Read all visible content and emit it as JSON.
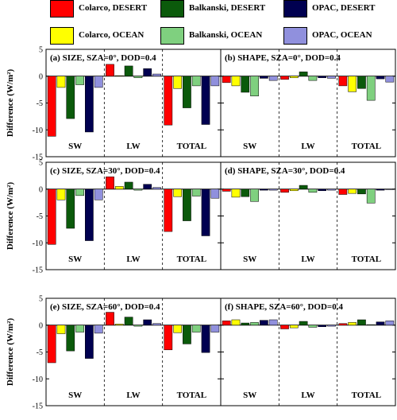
{
  "legend": {
    "items": [
      {
        "label": "Colarco, DESERT",
        "color": "#ff0000"
      },
      {
        "label": "Balkanski, DESERT",
        "color": "#0b5a0b"
      },
      {
        "label": "OPAC, DESERT",
        "color": "#000050"
      },
      {
        "label": "Colarco, OCEAN",
        "color": "#ffff00"
      },
      {
        "label": "Balkanski, OCEAN",
        "color": "#7fd07f"
      },
      {
        "label": "OPAC, OCEAN",
        "color": "#9090dd"
      }
    ]
  },
  "y_axis_label": "Difference (W/m²)",
  "chart_data": [
    {
      "type": "bar",
      "title": "(a) SIZE, SZA=0°, DOD=0.4",
      "categories": [
        "SW",
        "LW",
        "TOTAL"
      ],
      "ylim": [
        -15,
        5
      ],
      "yticks": [
        5,
        0,
        -5,
        -10,
        -15
      ],
      "series": [
        {
          "name": "Colarco, DESERT",
          "values": [
            -11.2,
            2.2,
            -9.1
          ]
        },
        {
          "name": "Colarco, OCEAN",
          "values": [
            -2.1,
            0.1,
            -2.3
          ]
        },
        {
          "name": "Balkanski, DESERT",
          "values": [
            -7.9,
            1.9,
            -5.9
          ]
        },
        {
          "name": "Balkanski, OCEAN",
          "values": [
            -1.6,
            -0.3,
            -1.8
          ]
        },
        {
          "name": "OPAC, DESERT",
          "values": [
            -10.4,
            1.4,
            -9.0
          ]
        },
        {
          "name": "OPAC, OCEAN",
          "values": [
            -2.1,
            0.4,
            -1.8
          ]
        }
      ]
    },
    {
      "type": "bar",
      "title": "(b) SHAPE, SZA=0°, DOD=0.4",
      "categories": [
        "SW",
        "LW",
        "TOTAL"
      ],
      "ylim": [
        -15,
        5
      ],
      "yticks": [
        5,
        0,
        -5,
        -10,
        -15
      ],
      "series": [
        {
          "name": "Colarco, DESERT",
          "values": [
            -1.2,
            -0.6,
            -1.8
          ]
        },
        {
          "name": "Colarco, OCEAN",
          "values": [
            -1.8,
            -0.3,
            -2.9
          ]
        },
        {
          "name": "Balkanski, DESERT",
          "values": [
            -3.0,
            0.8,
            -2.3
          ]
        },
        {
          "name": "Balkanski, OCEAN",
          "values": [
            -3.7,
            -0.8,
            -4.5
          ]
        },
        {
          "name": "OPAC, DESERT",
          "values": [
            -0.4,
            -0.3,
            -0.5
          ]
        },
        {
          "name": "OPAC, OCEAN",
          "values": [
            -0.8,
            -0.4,
            -1.1
          ]
        }
      ]
    },
    {
      "type": "bar",
      "title": "(c) SIZE, SZA=30°, DOD=0.4",
      "categories": [
        "SW",
        "LW",
        "TOTAL"
      ],
      "ylim": [
        -15,
        5
      ],
      "yticks": [
        5,
        0,
        -5,
        -10,
        -15
      ],
      "series": [
        {
          "name": "Colarco, DESERT",
          "values": [
            -10.3,
            2.3,
            -7.9
          ]
        },
        {
          "name": "Colarco, OCEAN",
          "values": [
            -2.0,
            0.5,
            -1.4
          ]
        },
        {
          "name": "Balkanski, DESERT",
          "values": [
            -7.3,
            1.3,
            -5.9
          ]
        },
        {
          "name": "Balkanski, OCEAN",
          "values": [
            -1.2,
            -0.2,
            -1.3
          ]
        },
        {
          "name": "OPAC, DESERT",
          "values": [
            -9.6,
            0.9,
            -8.7
          ]
        },
        {
          "name": "OPAC, OCEAN",
          "values": [
            -2.0,
            0.3,
            -1.7
          ]
        }
      ]
    },
    {
      "type": "bar",
      "title": "(d) SHAPE, SZA=30°, DOD=0.4",
      "categories": [
        "SW",
        "LW",
        "TOTAL"
      ],
      "ylim": [
        -15,
        5
      ],
      "yticks": [
        5,
        0,
        -5,
        -10,
        -15
      ],
      "series": [
        {
          "name": "Colarco, DESERT",
          "values": [
            -0.4,
            -0.6,
            -1.0
          ]
        },
        {
          "name": "Colarco, OCEAN",
          "values": [
            -1.5,
            -0.3,
            -0.8
          ]
        },
        {
          "name": "Balkanski, DESERT",
          "values": [
            -1.4,
            0.7,
            -0.9
          ]
        },
        {
          "name": "Balkanski, OCEAN",
          "values": [
            -2.3,
            -0.6,
            -2.6
          ]
        },
        {
          "name": "OPAC, DESERT",
          "values": [
            -0.2,
            -0.3,
            -0.2
          ]
        },
        {
          "name": "OPAC, OCEAN",
          "values": [
            -0.2,
            -0.2,
            -0.1
          ]
        }
      ]
    },
    {
      "type": "bar",
      "title": "(e) SIZE, SZA=60°, DOD=0.4",
      "categories": [
        "SW",
        "LW",
        "TOTAL"
      ],
      "ylim": [
        -15,
        5
      ],
      "yticks": [
        5,
        0,
        -5,
        -10,
        -15
      ],
      "series": [
        {
          "name": "Colarco, DESERT",
          "values": [
            -7.0,
            2.4,
            -4.6
          ]
        },
        {
          "name": "Colarco, OCEAN",
          "values": [
            -1.6,
            0.2,
            -1.4
          ]
        },
        {
          "name": "Balkanski, DESERT",
          "values": [
            -4.8,
            1.5,
            -3.5
          ]
        },
        {
          "name": "Balkanski, OCEAN",
          "values": [
            -1.3,
            -0.2,
            -1.3
          ]
        },
        {
          "name": "OPAC, DESERT",
          "values": [
            -6.2,
            1.0,
            -5.1
          ]
        },
        {
          "name": "OPAC, OCEAN",
          "values": [
            -1.5,
            0.3,
            -1.3
          ]
        }
      ]
    },
    {
      "type": "bar",
      "title": "(f) SHAPE, SZA=60°, DOD=0.4",
      "categories": [
        "SW",
        "LW",
        "TOTAL"
      ],
      "ylim": [
        -15,
        5
      ],
      "yticks": [
        5,
        0,
        -5,
        -10,
        -15
      ],
      "series": [
        {
          "name": "Colarco, DESERT",
          "values": [
            0.8,
            -0.7,
            0.3
          ]
        },
        {
          "name": "Colarco, OCEAN",
          "values": [
            1.0,
            -0.5,
            0.5
          ]
        },
        {
          "name": "Balkanski, DESERT",
          "values": [
            0.4,
            0.7,
            1.0
          ]
        },
        {
          "name": "Balkanski, OCEAN",
          "values": [
            0.5,
            -0.4,
            0.1
          ]
        },
        {
          "name": "OPAC, DESERT",
          "values": [
            0.9,
            -0.3,
            0.6
          ]
        },
        {
          "name": "OPAC, OCEAN",
          "values": [
            1.0,
            -0.2,
            0.8
          ]
        }
      ]
    }
  ]
}
